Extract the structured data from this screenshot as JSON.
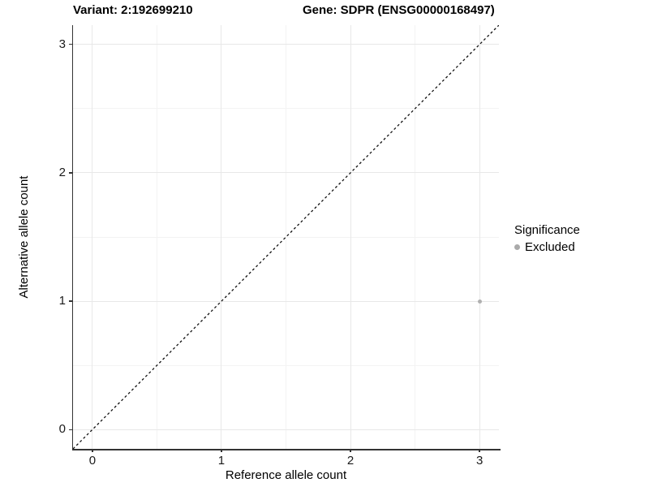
{
  "header": {
    "variant_title": "Variant: 2:192699210",
    "gene_title": "Gene: SDPR (ENSG00000168497)"
  },
  "chart_data": {
    "type": "scatter",
    "title_left": "Variant: 2:192699210",
    "title_right": "Gene: SDPR (ENSG00000168497)",
    "xlabel": "Reference allele count",
    "ylabel": "Alternative allele count",
    "xlim": [
      -0.15,
      3.15
    ],
    "ylim": [
      -0.15,
      3.15
    ],
    "x_ticks": [
      0,
      1,
      2,
      3
    ],
    "y_ticks": [
      0,
      1,
      2,
      3
    ],
    "x_minor": [
      0.5,
      1.5,
      2.5
    ],
    "y_minor": [
      0.5,
      1.5,
      2.5
    ],
    "grid": true,
    "identity_line": {
      "style": "dashed",
      "from": [
        -0.15,
        -0.15
      ],
      "to": [
        3.15,
        3.15
      ]
    },
    "points": [
      {
        "x": 3,
        "y": 1,
        "series": "Excluded",
        "color": "#b0b0b0"
      }
    ],
    "legend": {
      "title": "Significance",
      "position": "right",
      "items": [
        {
          "label": "Excluded",
          "color": "#aaaaaa"
        }
      ]
    }
  },
  "colors": {
    "axis_line": "#333333",
    "grid_major": "#e8e8e8",
    "grid_minor": "#f3f3f3",
    "dashed_line": "#111111",
    "background": "#ffffff"
  }
}
